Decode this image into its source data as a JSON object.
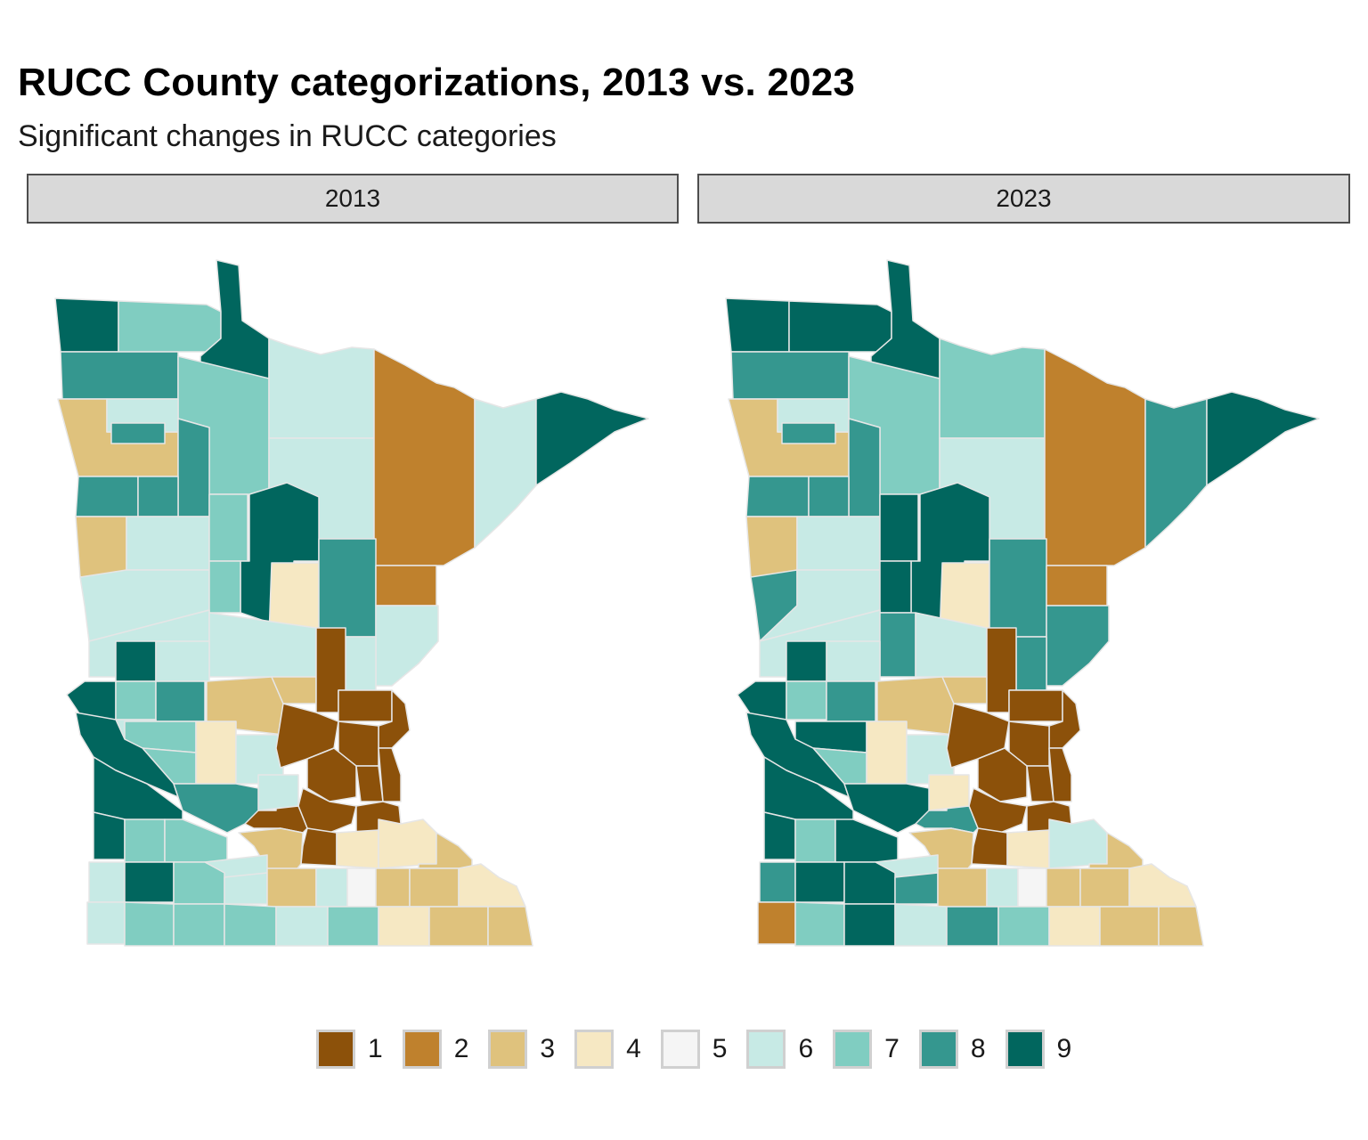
{
  "title": "RUCC County categorizations, 2013 vs. 2023",
  "subtitle": "Significant changes in RUCC categories",
  "panels": [
    {
      "label": "2013"
    },
    {
      "label": "2023"
    }
  ],
  "legend": [
    {
      "label": "1",
      "color": "#8c510a"
    },
    {
      "label": "2",
      "color": "#bf812d"
    },
    {
      "label": "3",
      "color": "#dfc27d"
    },
    {
      "label": "4",
      "color": "#f6e8c3"
    },
    {
      "label": "5",
      "color": "#f5f5f5"
    },
    {
      "label": "6",
      "color": "#c7eae5"
    },
    {
      "label": "7",
      "color": "#80cdc1"
    },
    {
      "label": "8",
      "color": "#35978f"
    },
    {
      "label": "9",
      "color": "#01665e"
    }
  ]
}
